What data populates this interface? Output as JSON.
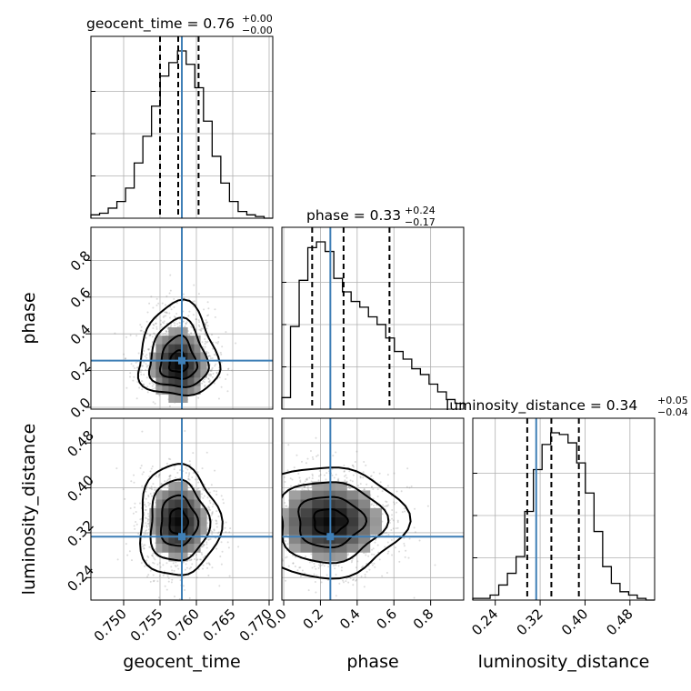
{
  "chart_data": {
    "type": "corner",
    "parameters": [
      {
        "name": "geocent_time",
        "axis_label": "geocent_time",
        "title_main": "geocent_time = 0.76",
        "title_plus": "+0.00",
        "title_minus": "−0.00",
        "range": [
          0.7455,
          0.7705
        ],
        "ticks": [
          0.75,
          0.755,
          0.76,
          0.765,
          0.77
        ],
        "tick_labels": [
          "0.750",
          "0.755",
          "0.760",
          "0.765",
          "0.770"
        ],
        "quantiles": [
          0.755,
          0.7575,
          0.7603
        ],
        "truth": 0.758,
        "hist": [
          2,
          3,
          6,
          10,
          18,
          33,
          49,
          67,
          85,
          93,
          100,
          92,
          78,
          58,
          37,
          21,
          10,
          4,
          2,
          1,
          0
        ]
      },
      {
        "name": "phase",
        "axis_label": "phase",
        "title_main": "phase = 0.33",
        "title_plus": "+0.24",
        "title_minus": "−0.17",
        "range": [
          -0.01,
          0.98
        ],
        "ticks": [
          0.0,
          0.2,
          0.4,
          0.6,
          0.8
        ],
        "tick_labels": [
          "0.0",
          "0.2",
          "0.4",
          "0.6",
          "0.8"
        ],
        "quantiles": [
          0.155,
          0.326,
          0.576
        ],
        "truth": 0.254,
        "hist": [
          6,
          43,
          67,
          84,
          87,
          82,
          68,
          61,
          56,
          53,
          48,
          44,
          37,
          30,
          26,
          21,
          18,
          13,
          9,
          5,
          3
        ]
      },
      {
        "name": "luminosity_distance",
        "axis_label": "luminosity_distance",
        "title_main": "luminosity_distance = 0.34",
        "title_plus": "+0.05",
        "title_minus": "−0.04",
        "range": [
          0.2,
          0.524
        ],
        "ticks": [
          0.24,
          0.32,
          0.4,
          0.48
        ],
        "tick_labels": [
          "0.24",
          "0.32",
          "0.40",
          "0.48"
        ],
        "quantiles": [
          0.297,
          0.34,
          0.389
        ],
        "truth": 0.313,
        "hist": [
          1,
          1,
          3,
          9,
          16,
          26,
          53,
          78,
          93,
          100,
          99,
          94,
          82,
          64,
          41,
          20,
          10,
          5,
          3,
          1,
          0
        ]
      }
    ],
    "pairs": [
      {
        "x": "geocent_time",
        "y": "phase",
        "mode": [
          0.7575,
          0.23
        ],
        "spread": [
          0.0025,
          0.13
        ]
      },
      {
        "x": "geocent_time",
        "y": "luminosity_distance",
        "mode": [
          0.7575,
          0.34
        ],
        "spread": [
          0.0025,
          0.045
        ]
      },
      {
        "x": "phase",
        "y": "luminosity_distance",
        "mode": [
          0.25,
          0.34
        ],
        "spread": [
          0.18,
          0.045
        ]
      }
    ],
    "grid": true,
    "colors": {
      "truth": "#3f7fb6",
      "line": "#000000",
      "grid": "#b0b0b0",
      "scatter": "#7f7f7f"
    }
  }
}
